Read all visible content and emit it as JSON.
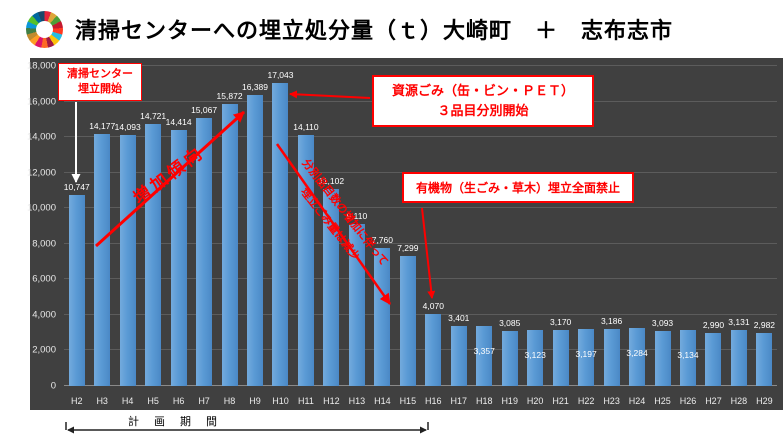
{
  "header": {
    "title": "清掃センターへの埋立処分量（ｔ）大崎町　＋　志布志市",
    "logo": "sdgs-wheel-icon"
  },
  "chart_data": {
    "type": "bar",
    "title": "清掃センターへの埋立処分量（ｔ）大崎町　＋　志布志市",
    "categories": [
      "H2",
      "H3",
      "H4",
      "H5",
      "H6",
      "H7",
      "H8",
      "H9",
      "H10",
      "H11",
      "H12",
      "H13",
      "H14",
      "H15",
      "H16",
      "H17",
      "H18",
      "H19",
      "H20",
      "H21",
      "H22",
      "H23",
      "H24",
      "H25",
      "H26",
      "H27",
      "H28",
      "H29"
    ],
    "values": [
      10747,
      14177,
      14093,
      14721,
      14414,
      15067,
      15872,
      16389,
      17043,
      14110,
      11102,
      9110,
      7760,
      7299,
      4070,
      3401,
      3357,
      3085,
      3123,
      3170,
      3197,
      3186,
      3284,
      3093,
      3134,
      2990,
      3131,
      2982
    ],
    "xlabel": "",
    "ylabel": "",
    "ylim": [
      0,
      18000
    ],
    "ytick_step": 2000,
    "grid": true,
    "legend": "none",
    "bar_color": "#5b9bd5",
    "plot_bg": "#404040",
    "low_label_indices": [
      16,
      18,
      20,
      22,
      24
    ]
  },
  "annotations": {
    "landfill_start": {
      "line1": "清掃センター",
      "line2": "埋立開始"
    },
    "recycle_start": {
      "line1": "資源ごみ（缶・ビン・ＰＥＴ）",
      "line2": "３品目分別開始"
    },
    "organic_ban": {
      "text": "有機物（生ごみ・草木）埋立全面禁止"
    },
    "increase_trend": {
      "text": "増加傾向"
    },
    "decrease_trend": {
      "line1": "分別品目数の増加に伴って",
      "line2": "埋立ごみ量は減少"
    },
    "plan_period": {
      "text": "計　画　期　間"
    }
  },
  "colors": {
    "accent_red": "#ff0000",
    "bar": "#5b9bd5",
    "plot_background": "#404040",
    "value_label": "#ffffff"
  }
}
